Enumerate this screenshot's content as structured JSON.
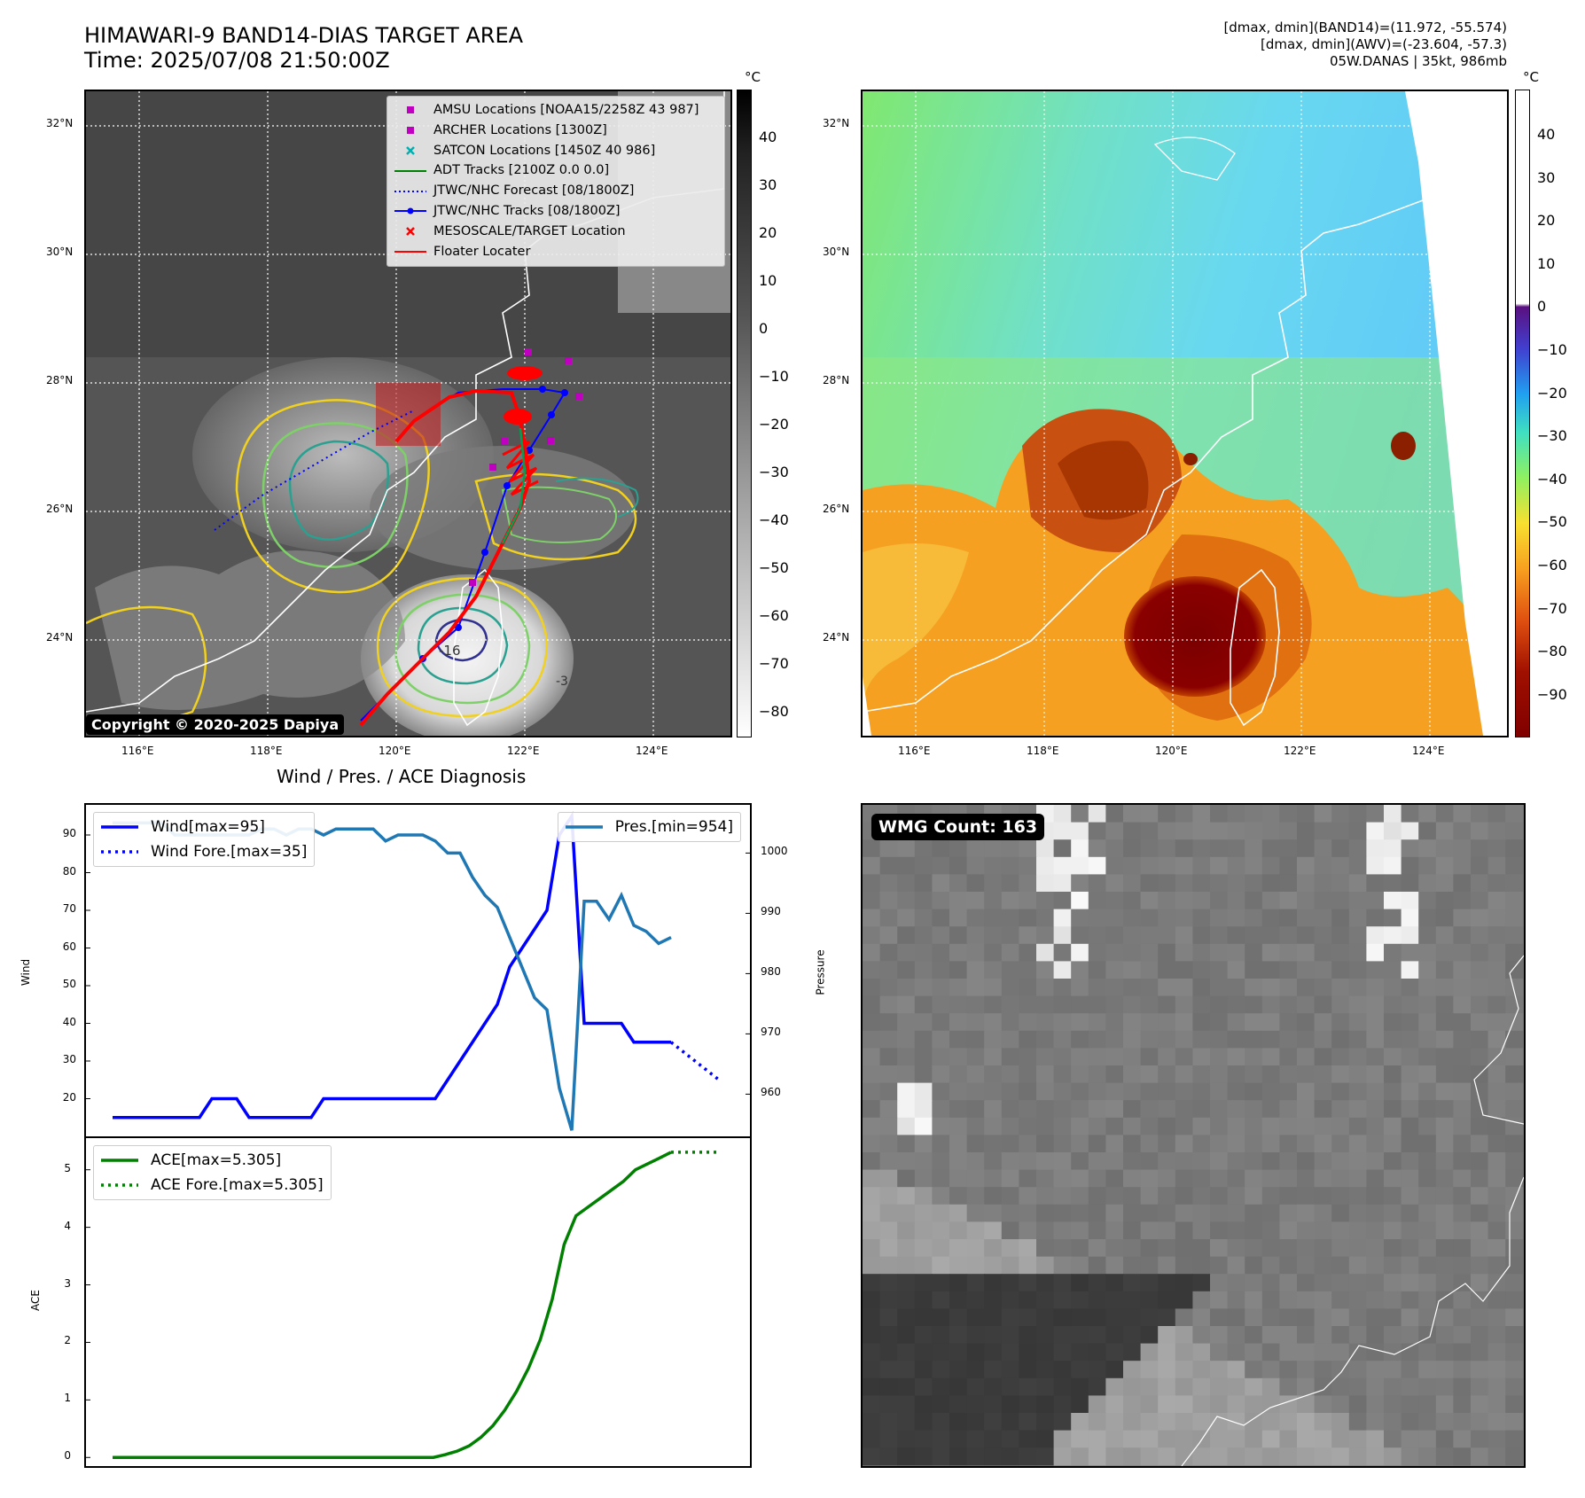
{
  "header": {
    "title_line1": "HIMAWARI-9 BAND14-DIAS TARGET AREA",
    "title_line2": "Time: 2025/07/08 21:50:00Z",
    "right_line1": "[dmax, dmin](BAND14)=(11.972, -55.574)",
    "right_line2": "[dmax, dmin](AWV)=(-23.604, -57.3)",
    "right_line3": "05W.DANAS | 35kt, 986mb"
  },
  "map": {
    "lat_labels": [
      "32°N",
      "30°N",
      "28°N",
      "26°N",
      "24°N"
    ],
    "lon_labels": [
      "116°E",
      "118°E",
      "120°E",
      "122°E",
      "124°E"
    ],
    "copyright": "Copyright © 2020-2025 Dapiya",
    "contour_label": "-16",
    "contour_label2": "-3",
    "unit": "°C",
    "colorbar1_ticks": [
      "40",
      "30",
      "20",
      "10",
      "0",
      "−10",
      "−20",
      "−30",
      "−40",
      "−50",
      "−60",
      "−70",
      "−80"
    ],
    "colorbar2_ticks": [
      "40",
      "30",
      "20",
      "10",
      "0",
      "−10",
      "−20",
      "−30",
      "−40",
      "−50",
      "−60",
      "−70",
      "−80",
      "−90"
    ],
    "legend": [
      {
        "label": "AMSU Locations [NOAA15/2258Z 43 987]",
        "color": "#c000c0",
        "kind": "square"
      },
      {
        "label": "ARCHER Locations [1300Z]",
        "color": "#c000c0",
        "kind": "square"
      },
      {
        "label": "SATCON Locations [1450Z 40 986]",
        "color": "#00b0b0",
        "kind": "x"
      },
      {
        "label": "ADT Tracks [2100Z 0.0 0.0]",
        "color": "#008000",
        "kind": "line"
      },
      {
        "label": "JTWC/NHC Forecast [08/1800Z]",
        "color": "#0000ff",
        "kind": "dotted"
      },
      {
        "label": "JTWC/NHC Tracks [08/1800Z]",
        "color": "#0000ff",
        "kind": "linedot"
      },
      {
        "label": "MESOSCALE/TARGET Location",
        "color": "#ff0000",
        "kind": "x"
      },
      {
        "label": "Floater Locater",
        "color": "#ff0000",
        "kind": "line"
      }
    ]
  },
  "wmg": {
    "label": "WMG Count: 163"
  },
  "chart_data": [
    {
      "type": "line",
      "title": "Wind / Pres. / ACE Diagnosis",
      "ylabel": "Wind",
      "y2label": "Pressure",
      "ylim": [
        10,
        98
      ],
      "y2lim": [
        953,
        1008
      ],
      "yticks": [
        20,
        30,
        40,
        50,
        60,
        70,
        80,
        90
      ],
      "y2ticks": [
        960,
        970,
        980,
        990,
        1000
      ],
      "series": [
        {
          "name": "Wind[max=95]",
          "color": "#0000ff",
          "values": [
            15,
            15,
            15,
            15,
            15,
            15,
            15,
            15,
            20,
            20,
            20,
            15,
            15,
            15,
            15,
            15,
            15,
            20,
            20,
            20,
            20,
            20,
            20,
            20,
            20,
            20,
            20,
            25,
            30,
            35,
            40,
            45,
            55,
            60,
            65,
            70,
            90,
            95,
            40,
            40,
            40,
            40,
            35,
            35,
            35,
            35
          ]
        },
        {
          "name": "Wind Fore.[max=35]",
          "color": "#0000ff",
          "dotted": true,
          "values": [
            35,
            30,
            25
          ]
        },
        {
          "name": "Pres.[min=954]",
          "color": "#1f77b4",
          "values": [
            1005,
            1005,
            1005,
            1005,
            1005,
            1003,
            1003,
            1003,
            1003,
            1003,
            1003,
            1003,
            1004,
            1004,
            1003,
            1004,
            1004,
            1003,
            1004,
            1004,
            1004,
            1004,
            1002,
            1003,
            1003,
            1003,
            1002,
            1000,
            1000,
            996,
            993,
            991,
            986,
            981,
            976,
            974,
            961,
            954,
            992,
            992,
            989,
            993,
            988,
            987,
            985,
            986
          ]
        }
      ]
    },
    {
      "type": "line",
      "ylabel": "ACE",
      "ylim": [
        -0.15,
        5.55
      ],
      "yticks": [
        0,
        1,
        2,
        3,
        4,
        5
      ],
      "series": [
        {
          "name": "ACE[max=5.305]",
          "color": "#008000",
          "values": [
            0,
            0,
            0,
            0,
            0,
            0,
            0,
            0,
            0,
            0,
            0,
            0,
            0,
            0,
            0,
            0,
            0,
            0,
            0,
            0,
            0,
            0,
            0,
            0,
            0,
            0,
            0,
            0,
            0.05,
            0.11,
            0.2,
            0.35,
            0.55,
            0.82,
            1.15,
            1.55,
            2.05,
            2.75,
            3.7,
            4.2,
            4.35,
            4.5,
            4.65,
            4.8,
            5.0,
            5.1,
            5.2,
            5.305
          ]
        },
        {
          "name": "ACE Fore.[max=5.305]",
          "color": "#008000",
          "dotted": true,
          "values": [
            5.305,
            5.305,
            5.305
          ]
        }
      ]
    }
  ]
}
